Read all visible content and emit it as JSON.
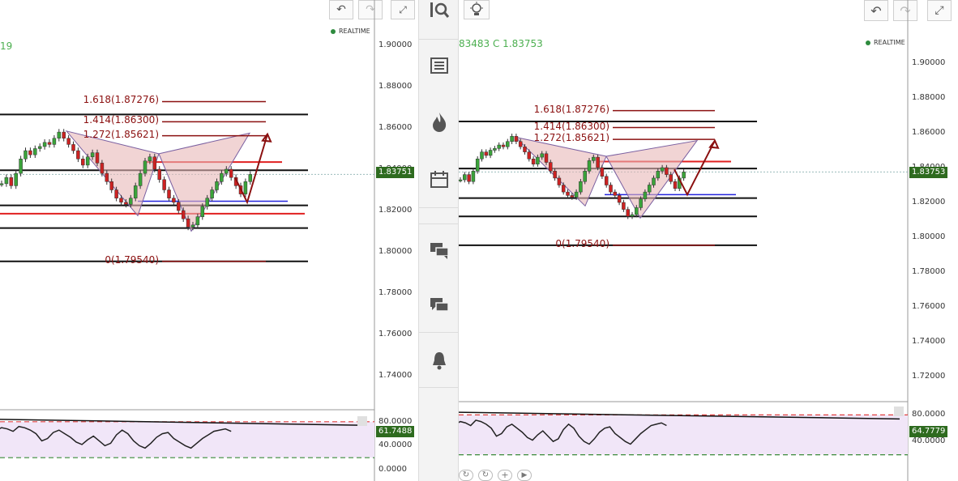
{
  "left_chart": {
    "header_value": "19",
    "realtime_label": "REALTIME",
    "price_axis": [
      "1.90000",
      "1.88000",
      "1.86000",
      "1.84000",
      "1.82000",
      "1.80000",
      "1.78000",
      "1.76000",
      "1.74000"
    ],
    "current_price": "1.83751",
    "fib_levels": [
      {
        "label": "1.618(1.87276)",
        "value": 1.87276
      },
      {
        "label": "1.414(1.86300)",
        "value": 1.863
      },
      {
        "label": "1.272(1.85621)",
        "value": 1.85621
      },
      {
        "label": "0(1.79540)",
        "value": 1.7954
      }
    ],
    "indicator_axis": [
      "80.0000",
      "40.0000",
      "0.0000"
    ],
    "indicator_value": "61.7488"
  },
  "right_chart": {
    "header_text": "83483  C  1.83753",
    "realtime_label": "REALTIME",
    "price_axis": [
      "1.90000",
      "1.88000",
      "1.86000",
      "1.84000",
      "1.82000",
      "1.80000",
      "1.78000",
      "1.76000",
      "1.74000",
      "1.72000"
    ],
    "current_price": "1.83753",
    "fib_levels": [
      {
        "label": "1.618(1.87276)",
        "value": 1.87276
      },
      {
        "label": "1.414(1.86300)",
        "value": 1.863
      },
      {
        "label": "1.272(1.85621)",
        "value": 1.85621
      },
      {
        "label": "0(1.79540)",
        "value": 1.7954
      }
    ],
    "indicator_axis": [
      "80.0000",
      "40.0000"
    ],
    "indicator_value": "64.7779"
  },
  "toolbar": {
    "items": [
      {
        "icon": "chart-search-icon"
      },
      {
        "icon": "news-list-icon"
      },
      {
        "icon": "hot-fire-icon"
      },
      {
        "icon": "calendar-icon"
      },
      {
        "icon": "chat-icon"
      },
      {
        "icon": "forum-icon"
      },
      {
        "icon": "alert-bell-icon"
      }
    ]
  },
  "colors": {
    "bull": "#3aa33a",
    "bear": "#cc2222",
    "fib": "#8b1010",
    "pattern": "#e8b8b8",
    "support_blue": "#2222dd",
    "indicator_bg": "#f1e6f8",
    "price_tag": "#2e6b1f"
  }
}
